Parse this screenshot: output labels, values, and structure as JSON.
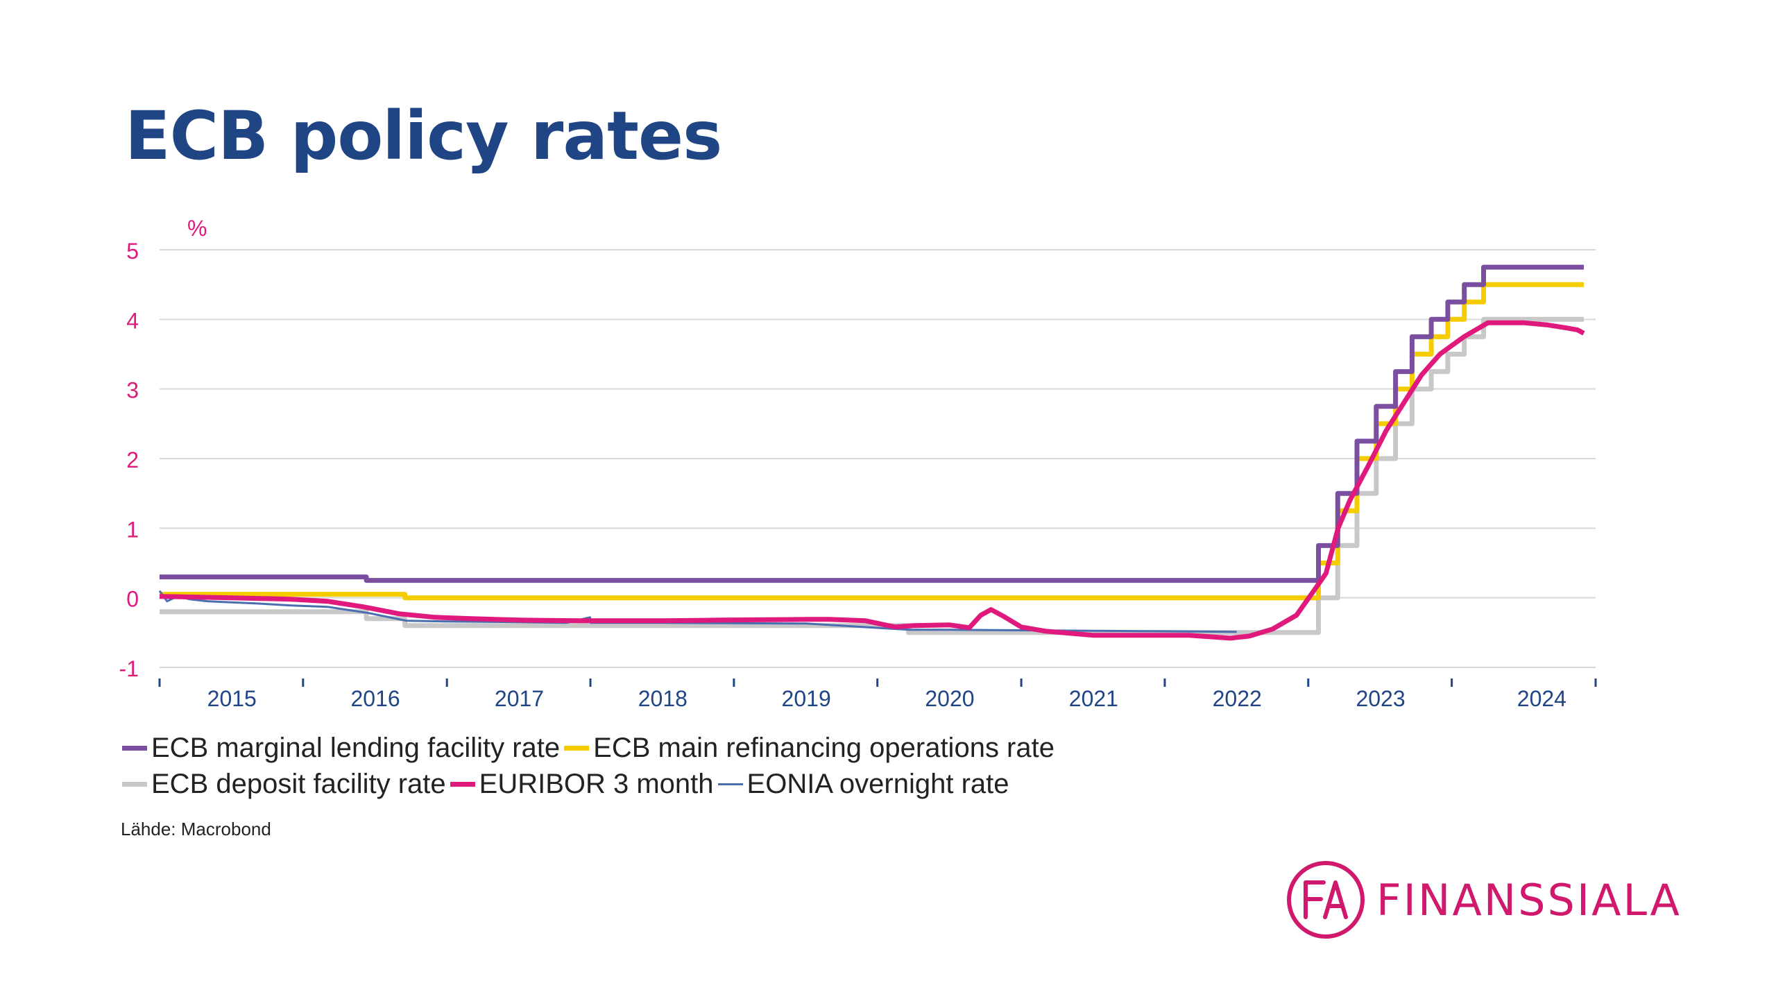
{
  "title": "ECB policy rates",
  "source": "Lähde: Macrobond",
  "logo": {
    "mark_letters": "FA",
    "text": "FINANSSIALA",
    "color": "#d0186c"
  },
  "colors": {
    "title": "#1f4585",
    "axis_labels": "#e0197d",
    "year_labels": "#1f4585",
    "grid": "#d9d9d9"
  },
  "chart_data": {
    "type": "line",
    "ylabel": "%",
    "ylim": [
      -1,
      5
    ],
    "yticks": [
      "5",
      "4",
      "3",
      "2",
      "1",
      "0",
      "-1"
    ],
    "ytick_values": [
      5,
      4,
      3,
      2,
      1,
      0,
      -1
    ],
    "x_axis": "time",
    "xlim": [
      "2014-07-01",
      "2024-07-01"
    ],
    "year_labels": [
      {
        "label": "2015",
        "date": "2015-01-01"
      },
      {
        "label": "2016",
        "date": "2016-01-01"
      },
      {
        "label": "2017",
        "date": "2017-01-01"
      },
      {
        "label": "2018",
        "date": "2018-01-01"
      },
      {
        "label": "2019",
        "date": "2019-01-01"
      },
      {
        "label": "2020",
        "date": "2020-01-01"
      },
      {
        "label": "2021",
        "date": "2021-01-01"
      },
      {
        "label": "2022",
        "date": "2022-01-01"
      },
      {
        "label": "2023",
        "date": "2023-01-01"
      },
      {
        "label": "2024",
        "date": "2024-02-15"
      }
    ],
    "x_tick_dates": [
      "2014-07-01",
      "2015-07-01",
      "2016-07-01",
      "2017-07-01",
      "2018-07-01",
      "2019-07-01",
      "2020-07-01",
      "2021-07-01",
      "2022-07-01",
      "2023-07-01",
      "2024-07-01"
    ],
    "grid": true,
    "legend_position": "bottom",
    "series": [
      {
        "name": "ECB marginal lending facility rate",
        "color": "#7b4fa0",
        "step": true,
        "points": [
          [
            "2014-07-01",
            0.3
          ],
          [
            "2015-12-09",
            0.3
          ],
          [
            "2015-12-09",
            0.25
          ],
          [
            "2022-07-27",
            0.25
          ],
          [
            "2022-07-27",
            0.75
          ],
          [
            "2022-09-14",
            0.75
          ],
          [
            "2022-09-14",
            1.5
          ],
          [
            "2022-11-02",
            1.5
          ],
          [
            "2022-11-02",
            2.25
          ],
          [
            "2022-12-21",
            2.25
          ],
          [
            "2022-12-21",
            2.75
          ],
          [
            "2023-02-08",
            2.75
          ],
          [
            "2023-02-08",
            3.25
          ],
          [
            "2023-03-22",
            3.25
          ],
          [
            "2023-03-22",
            3.75
          ],
          [
            "2023-05-10",
            3.75
          ],
          [
            "2023-05-10",
            4.0
          ],
          [
            "2023-06-21",
            4.0
          ],
          [
            "2023-06-21",
            4.25
          ],
          [
            "2023-08-02",
            4.25
          ],
          [
            "2023-08-02",
            4.5
          ],
          [
            "2023-09-20",
            4.5
          ],
          [
            "2023-09-20",
            4.75
          ],
          [
            "2024-06-01",
            4.75
          ]
        ]
      },
      {
        "name": "ECB main refinancing operations rate",
        "color": "#f5cc00",
        "step": true,
        "points": [
          [
            "2014-07-01",
            0.05
          ],
          [
            "2016-03-16",
            0.05
          ],
          [
            "2016-03-16",
            0.0
          ],
          [
            "2022-07-27",
            0.0
          ],
          [
            "2022-07-27",
            0.5
          ],
          [
            "2022-09-14",
            0.5
          ],
          [
            "2022-09-14",
            1.25
          ],
          [
            "2022-11-02",
            1.25
          ],
          [
            "2022-11-02",
            2.0
          ],
          [
            "2022-12-21",
            2.0
          ],
          [
            "2022-12-21",
            2.5
          ],
          [
            "2023-02-08",
            2.5
          ],
          [
            "2023-02-08",
            3.0
          ],
          [
            "2023-03-22",
            3.0
          ],
          [
            "2023-03-22",
            3.5
          ],
          [
            "2023-05-10",
            3.5
          ],
          [
            "2023-05-10",
            3.75
          ],
          [
            "2023-06-21",
            3.75
          ],
          [
            "2023-06-21",
            4.0
          ],
          [
            "2023-08-02",
            4.0
          ],
          [
            "2023-08-02",
            4.25
          ],
          [
            "2023-09-20",
            4.25
          ],
          [
            "2023-09-20",
            4.5
          ],
          [
            "2024-06-01",
            4.5
          ]
        ]
      },
      {
        "name": "ECB deposit facility rate",
        "color": "#c8c8c8",
        "step": true,
        "points": [
          [
            "2014-07-01",
            -0.2
          ],
          [
            "2015-12-09",
            -0.2
          ],
          [
            "2015-12-09",
            -0.3
          ],
          [
            "2016-03-16",
            -0.3
          ],
          [
            "2016-03-16",
            -0.4
          ],
          [
            "2019-09-18",
            -0.4
          ],
          [
            "2019-09-18",
            -0.5
          ],
          [
            "2022-07-27",
            -0.5
          ],
          [
            "2022-07-27",
            0.0
          ],
          [
            "2022-09-14",
            0.0
          ],
          [
            "2022-09-14",
            0.75
          ],
          [
            "2022-11-02",
            0.75
          ],
          [
            "2022-11-02",
            1.5
          ],
          [
            "2022-12-21",
            1.5
          ],
          [
            "2022-12-21",
            2.0
          ],
          [
            "2023-02-08",
            2.0
          ],
          [
            "2023-02-08",
            2.5
          ],
          [
            "2023-03-22",
            2.5
          ],
          [
            "2023-03-22",
            3.0
          ],
          [
            "2023-05-10",
            3.0
          ],
          [
            "2023-05-10",
            3.25
          ],
          [
            "2023-06-21",
            3.25
          ],
          [
            "2023-06-21",
            3.5
          ],
          [
            "2023-08-02",
            3.5
          ],
          [
            "2023-08-02",
            3.75
          ],
          [
            "2023-09-20",
            3.75
          ],
          [
            "2023-09-20",
            4.0
          ],
          [
            "2024-06-01",
            4.0
          ]
        ]
      },
      {
        "name": "EURIBOR 3 month",
        "color": "#e0197d",
        "step": false,
        "points": [
          [
            "2014-07-01",
            0.02
          ],
          [
            "2015-01-01",
            0.0
          ],
          [
            "2015-06-01",
            -0.02
          ],
          [
            "2015-09-01",
            -0.05
          ],
          [
            "2015-12-01",
            -0.13
          ],
          [
            "2016-03-01",
            -0.23
          ],
          [
            "2016-06-01",
            -0.28
          ],
          [
            "2016-09-01",
            -0.3
          ],
          [
            "2017-01-01",
            -0.32
          ],
          [
            "2017-06-01",
            -0.33
          ],
          [
            "2018-01-01",
            -0.33
          ],
          [
            "2018-06-01",
            -0.32
          ],
          [
            "2019-01-01",
            -0.31
          ],
          [
            "2019-03-01",
            -0.31
          ],
          [
            "2019-06-01",
            -0.33
          ],
          [
            "2019-08-15",
            -0.42
          ],
          [
            "2019-10-01",
            -0.4
          ],
          [
            "2020-01-01",
            -0.39
          ],
          [
            "2020-02-20",
            -0.43
          ],
          [
            "2020-03-20",
            -0.25
          ],
          [
            "2020-04-15",
            -0.17
          ],
          [
            "2020-05-15",
            -0.26
          ],
          [
            "2020-07-01",
            -0.42
          ],
          [
            "2020-09-01",
            -0.48
          ],
          [
            "2021-01-01",
            -0.54
          ],
          [
            "2021-06-01",
            -0.54
          ],
          [
            "2021-09-01",
            -0.54
          ],
          [
            "2021-12-15",
            -0.58
          ],
          [
            "2022-02-01",
            -0.55
          ],
          [
            "2022-04-01",
            -0.45
          ],
          [
            "2022-06-01",
            -0.25
          ],
          [
            "2022-07-15",
            0.1
          ],
          [
            "2022-08-15",
            0.35
          ],
          [
            "2022-09-15",
            1.0
          ],
          [
            "2022-10-15",
            1.4
          ],
          [
            "2022-12-01",
            1.9
          ],
          [
            "2023-01-15",
            2.4
          ],
          [
            "2023-03-01",
            2.8
          ],
          [
            "2023-04-15",
            3.2
          ],
          [
            "2023-06-01",
            3.5
          ],
          [
            "2023-08-01",
            3.75
          ],
          [
            "2023-10-01",
            3.95
          ],
          [
            "2024-01-01",
            3.95
          ],
          [
            "2024-03-01",
            3.92
          ],
          [
            "2024-04-15",
            3.88
          ],
          [
            "2024-05-15",
            3.85
          ],
          [
            "2024-06-01",
            3.8
          ]
        ]
      },
      {
        "name": "EONIA overnight rate",
        "color": "#4a6db0",
        "step": false,
        "points": [
          [
            "2014-07-01",
            0.1
          ],
          [
            "2014-07-20",
            -0.05
          ],
          [
            "2014-08-15",
            0.02
          ],
          [
            "2014-09-15",
            -0.02
          ],
          [
            "2014-11-01",
            -0.05
          ],
          [
            "2015-03-01",
            -0.08
          ],
          [
            "2015-06-01",
            -0.11
          ],
          [
            "2015-09-01",
            -0.13
          ],
          [
            "2015-12-15",
            -0.22
          ],
          [
            "2016-03-20",
            -0.33
          ],
          [
            "2016-07-01",
            -0.34
          ],
          [
            "2017-01-01",
            -0.35
          ],
          [
            "2017-05-01",
            -0.36
          ],
          [
            "2017-06-30",
            -0.28
          ],
          [
            "2017-07-02",
            -0.36
          ],
          [
            "2018-01-01",
            -0.36
          ],
          [
            "2019-01-01",
            -0.37
          ],
          [
            "2019-09-20",
            -0.46
          ],
          [
            "2020-01-01",
            -0.46
          ],
          [
            "2020-09-01",
            -0.47
          ],
          [
            "2021-06-01",
            -0.48
          ],
          [
            "2021-12-31",
            -0.49
          ]
        ]
      }
    ]
  }
}
